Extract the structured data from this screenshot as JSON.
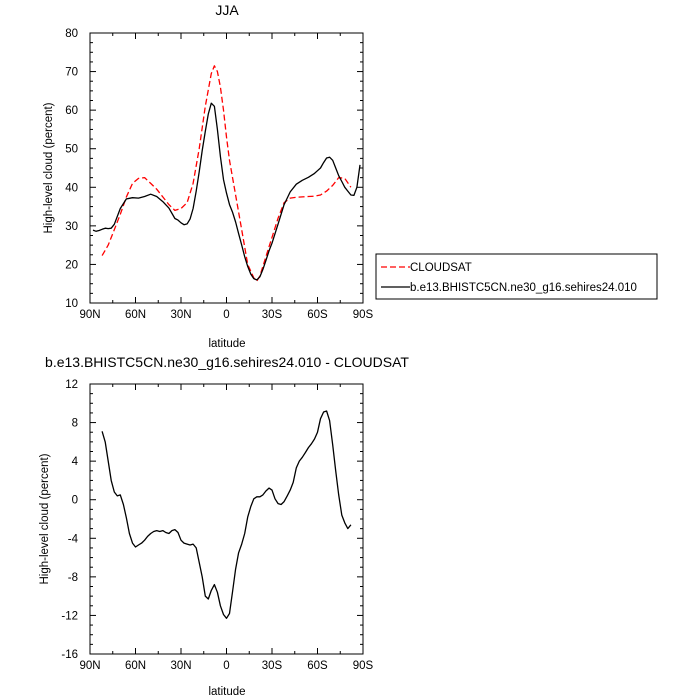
{
  "chart_data": [
    {
      "type": "line",
      "title": "JJA",
      "xlabel": "latitude",
      "ylabel": "High-level cloud (percent)",
      "xlim": [
        90,
        -90
      ],
      "ylim": [
        10,
        80
      ],
      "x_ticks": [
        90,
        60,
        30,
        0,
        -30,
        -60,
        -90
      ],
      "x_tick_labels": [
        "90N",
        "60N",
        "30N",
        "0",
        "30S",
        "60S",
        "90S"
      ],
      "y_ticks": [
        10,
        20,
        30,
        40,
        50,
        60,
        70,
        80
      ],
      "y_tick_labels": [
        "10",
        "20",
        "30",
        "40",
        "50",
        "60",
        "70",
        "80"
      ],
      "legend_position": "right",
      "series": [
        {
          "name": "CLOUDSAT",
          "color": "#ff0000",
          "dashed": true,
          "x": [
            82,
            78,
            74,
            70,
            66,
            62,
            58,
            54,
            50,
            46,
            42,
            38,
            34,
            30,
            26,
            22,
            18,
            14,
            10,
            8,
            6,
            4,
            2,
            0,
            -2,
            -6,
            -10,
            -14,
            -18,
            -20,
            -22,
            -26,
            -30,
            -34,
            -38,
            -42,
            -46,
            -50,
            -54,
            -58,
            -62,
            -66,
            -70,
            -74,
            -78,
            -82
          ],
          "y": [
            22.3,
            25,
            29,
            33,
            37.5,
            41,
            42.3,
            42.5,
            41,
            39.5,
            37.5,
            35.5,
            34,
            34.5,
            36,
            41,
            50,
            61,
            69.5,
            71.5,
            70,
            66,
            60,
            53,
            47,
            38,
            29,
            20,
            16.5,
            15.7,
            17,
            22,
            27,
            32,
            36,
            37.2,
            37.4,
            37.5,
            37.6,
            37.7,
            38,
            39,
            40.5,
            42.5,
            42.3,
            40
          ]
        },
        {
          "name": "b.e13.BHISTC5CN.ne30_g16.sehires24.010",
          "color": "#000000",
          "dashed": false,
          "x": [
            88,
            86,
            84,
            82,
            80,
            78,
            76,
            74,
            70,
            66,
            62,
            58,
            54,
            50,
            46,
            42,
            38,
            34,
            32,
            30,
            28,
            26,
            24,
            22,
            20,
            18,
            16,
            14,
            12,
            10,
            8,
            6,
            4,
            2,
            0,
            -2,
            -4,
            -6,
            -8,
            -10,
            -12,
            -14,
            -16,
            -18,
            -20,
            -22,
            -24,
            -26,
            -28,
            -30,
            -34,
            -38,
            -42,
            -46,
            -50,
            -54,
            -58,
            -60,
            -62,
            -64,
            -66,
            -68,
            -70,
            -72,
            -74,
            -76,
            -78,
            -80,
            -82,
            -84,
            -86,
            -88
          ],
          "y": [
            28.9,
            28.6,
            28.8,
            29.1,
            29.4,
            29.3,
            29.4,
            30.4,
            34.5,
            37,
            37.3,
            37.2,
            37.6,
            38.2,
            37.6,
            36.3,
            34.6,
            31.9,
            31.5,
            30.8,
            30.3,
            30.5,
            31.8,
            34.5,
            39,
            44,
            49.5,
            54.5,
            59,
            61.8,
            61,
            55,
            48,
            42,
            38.5,
            35.5,
            33.5,
            31,
            28,
            25,
            22,
            19.5,
            17.5,
            16.3,
            16,
            16.8,
            18.7,
            21,
            23.5,
            25.5,
            30.5,
            35.5,
            38.8,
            40.8,
            41.8,
            42.6,
            43.6,
            44.3,
            45,
            46.4,
            47.6,
            47.8,
            47,
            45,
            43,
            41.5,
            40,
            39,
            38,
            37.9,
            40,
            45.8
          ]
        }
      ]
    },
    {
      "type": "line",
      "title": "b.e13.BHISTC5CN.ne30_g16.sehires24.010 - CLOUDSAT",
      "xlabel": "latitude",
      "ylabel": "High-level cloud (percent)",
      "xlim": [
        90,
        -90
      ],
      "ylim": [
        -16,
        12
      ],
      "x_ticks": [
        90,
        60,
        30,
        0,
        -30,
        -60,
        -90
      ],
      "x_tick_labels": [
        "90N",
        "60N",
        "30N",
        "0",
        "30S",
        "60S",
        "90S"
      ],
      "y_ticks": [
        -16,
        -12,
        -8,
        -4,
        0,
        4,
        8,
        12
      ],
      "y_tick_labels": [
        "-16",
        "-12",
        "-8",
        "-4",
        "0",
        "4",
        "8",
        "12"
      ],
      "series": [
        {
          "color": "#000000",
          "dashed": false,
          "x": [
            82,
            80,
            78,
            76,
            74,
            72,
            70,
            68,
            66,
            64,
            62,
            60,
            58,
            56,
            54,
            52,
            50,
            48,
            46,
            44,
            42,
            40,
            38,
            36,
            34,
            32,
            30,
            28,
            26,
            24,
            22,
            20,
            18,
            16,
            14,
            12,
            10,
            8,
            6,
            4,
            2,
            0,
            -2,
            -4,
            -6,
            -8,
            -10,
            -12,
            -14,
            -16,
            -18,
            -20,
            -22,
            -24,
            -26,
            -28,
            -30,
            -32,
            -34,
            -36,
            -38,
            -40,
            -42,
            -44,
            -46,
            -48,
            -50,
            -52,
            -54,
            -56,
            -58,
            -60,
            -62,
            -64,
            -66,
            -68,
            -70,
            -72,
            -74,
            -76,
            -78,
            -80,
            -82
          ],
          "y": [
            7.1,
            6,
            4,
            2,
            0.8,
            0.4,
            0.5,
            -0.5,
            -1.9,
            -3.5,
            -4.5,
            -4.9,
            -4.7,
            -4.5,
            -4.2,
            -3.8,
            -3.5,
            -3.3,
            -3.2,
            -3.3,
            -3.2,
            -3.4,
            -3.5,
            -3.2,
            -3.1,
            -3.4,
            -4.2,
            -4.5,
            -4.6,
            -4.7,
            -4.6,
            -5,
            -6.5,
            -8,
            -10,
            -10.3,
            -9.4,
            -8.8,
            -9.6,
            -11,
            -11.9,
            -12.3,
            -11.8,
            -9.5,
            -7.2,
            -5.5,
            -4.6,
            -3.5,
            -1.8,
            -0.7,
            0.1,
            0.3,
            0.3,
            0.5,
            0.9,
            1.2,
            1,
            0.1,
            -0.4,
            -0.5,
            -0.2,
            0.4,
            1,
            1.8,
            3.3,
            4,
            4.4,
            4.9,
            5.4,
            5.8,
            6.3,
            7,
            8.4,
            9.1,
            9.2,
            8.2,
            5.7,
            3,
            0.5,
            -1.6,
            -2.4,
            -3,
            -2.6
          ]
        }
      ]
    }
  ],
  "legend": {
    "items": [
      {
        "label": "CLOUDSAT",
        "color": "#ff0000",
        "dashed": true
      },
      {
        "label": "b.e13.BHISTC5CN.ne30_g16.sehires24.010",
        "color": "#000000",
        "dashed": false
      }
    ]
  }
}
